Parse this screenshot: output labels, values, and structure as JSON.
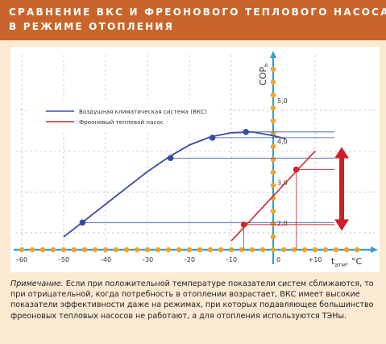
{
  "header": {
    "title_line1": "СРАВНЕНИЕ ВКС И ФРЕОНОВОГО ТЕПЛОВОГО НАСОСА",
    "title_line2": "В РЕЖИМЕ ОТОПЛЕНИЯ"
  },
  "colors": {
    "header_bg": "#c9652a",
    "page_bg": "#fbe9d2",
    "axis": "#2f9fdc",
    "vks": "#3a4aa8",
    "freon": "#d4262c",
    "marker": "#f4a223",
    "arrow": "#d01f27"
  },
  "chart_data": {
    "type": "line",
    "xlabel_main": "t",
    "xlabel_sub": "атм",
    "xlabel_unit": ", °C",
    "ylabel_main": "COP",
    "ylabel_sub": "h",
    "xlim": [
      -62,
      15
    ],
    "ylim": [
      0.9,
      6.0
    ],
    "x_ticks": [
      -60,
      -50,
      -40,
      -30,
      -20,
      -10,
      0,
      10
    ],
    "x_tick_labels": [
      "–60",
      "–50",
      "–40",
      "–30",
      "–20",
      "–10",
      "0",
      "+10"
    ],
    "y_ticks": [
      2.0,
      3.0,
      4.0,
      5.0
    ],
    "y_tick_labels": [
      "2,0",
      "3,0",
      "4,0",
      "5,0"
    ],
    "legend": {
      "position": "top-left",
      "entries": [
        "Воздушная климатическая система (ВКС)",
        "Фреоновый тепловой насос"
      ]
    },
    "series": [
      {
        "name": "Воздушная климатическая система (ВКС)",
        "curve_x": [
          -50,
          -45,
          -40,
          -35,
          -30,
          -25,
          -20,
          -15,
          -10,
          -5,
          0,
          3
        ],
        "curve_y": [
          1.9,
          2.3,
          2.7,
          3.1,
          3.5,
          3.85,
          4.15,
          4.35,
          4.45,
          4.47,
          4.38,
          4.3
        ],
        "points_x": [
          -45.5,
          -24.5,
          -14.5,
          -6.5
        ],
        "points_y": [
          2.25,
          3.83,
          4.33,
          4.47
        ]
      },
      {
        "name": "Фреоновый тепловой насос",
        "curve_x": [
          -10,
          10
        ],
        "curve_y": [
          1.8,
          4.0
        ],
        "points_x": [
          -7,
          5.5
        ],
        "points_y": [
          2.2,
          3.55
        ]
      }
    ],
    "arrow_y_range": [
      2.05,
      4.1
    ]
  },
  "note": {
    "label": "Примечание.",
    "text": " Если при положительной температуре показатели систем сближаются, то при отрицательной, когда потребность в отоплении возрастает, ВКС имеет высокие показатели эффективности даже на режимах, при которых подавляющее большинство фреоновых тепловых насосов не работают, а для отопления используются ТЭНы."
  }
}
